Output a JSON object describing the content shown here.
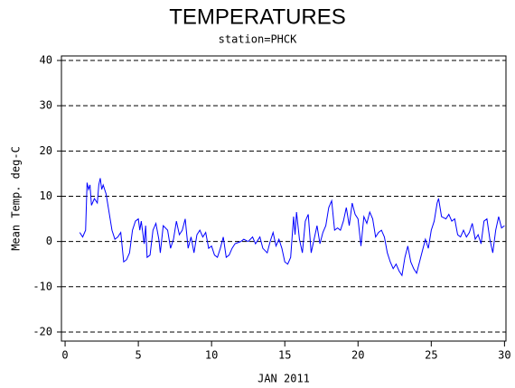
{
  "chart_data": {
    "type": "line",
    "title": "TEMPERATURES",
    "subtitle": "station=PHCK",
    "y_label": "Mean Temp. deg-C",
    "x_label": "JAN 2011",
    "x": [
      1.0,
      1.2,
      1.4,
      1.5,
      1.6,
      1.7,
      1.8,
      2.0,
      2.2,
      2.3,
      2.4,
      2.5,
      2.6,
      2.8,
      3.0,
      3.2,
      3.4,
      3.6,
      3.8,
      4.0,
      4.2,
      4.4,
      4.6,
      4.8,
      5.0,
      5.1,
      5.2,
      5.4,
      5.5,
      5.6,
      5.8,
      6.0,
      6.2,
      6.4,
      6.5,
      6.7,
      7.0,
      7.2,
      7.4,
      7.6,
      7.8,
      8.0,
      8.2,
      8.4,
      8.6,
      8.8,
      9.0,
      9.2,
      9.4,
      9.6,
      9.8,
      10.0,
      10.2,
      10.4,
      10.6,
      10.8,
      11.0,
      11.2,
      11.4,
      11.6,
      12.0,
      12.2,
      12.5,
      12.8,
      13.0,
      13.3,
      13.5,
      13.8,
      14.0,
      14.2,
      14.4,
      14.6,
      14.8,
      15.0,
      15.2,
      15.4,
      15.6,
      15.7,
      15.8,
      16.0,
      16.2,
      16.4,
      16.6,
      16.8,
      17.0,
      17.2,
      17.4,
      17.6,
      17.8,
      18.0,
      18.2,
      18.4,
      18.6,
      18.8,
      19.0,
      19.2,
      19.4,
      19.6,
      19.8,
      20.0,
      20.2,
      20.4,
      20.6,
      20.8,
      21.0,
      21.2,
      21.4,
      21.6,
      21.8,
      22.0,
      22.2,
      22.4,
      22.6,
      22.8,
      23.0,
      23.2,
      23.4,
      23.6,
      23.8,
      24.0,
      24.2,
      24.4,
      24.6,
      24.8,
      25.0,
      25.2,
      25.4,
      25.5,
      25.7,
      26.0,
      26.2,
      26.4,
      26.6,
      26.8,
      27.0,
      27.2,
      27.4,
      27.6,
      27.8,
      28.0,
      28.2,
      28.4,
      28.6,
      28.8,
      29.0,
      29.2,
      29.4,
      29.6,
      29.8,
      30.0
    ],
    "series": [
      {
        "color": "#0000ff",
        "values": [
          2,
          1,
          2.5,
          13,
          11.5,
          12.5,
          8,
          9.5,
          8.5,
          12.5,
          14,
          11.5,
          12.5,
          10.5,
          6.5,
          2.5,
          0.5,
          1,
          2,
          -4.5,
          -4,
          -2.5,
          2.5,
          4.5,
          5,
          2.5,
          4.5,
          -0.5,
          3.5,
          -3.5,
          -3,
          2.5,
          4,
          0.5,
          -2.5,
          3.5,
          2.5,
          -1.5,
          0.5,
          4.5,
          1.5,
          2.5,
          5,
          -1.5,
          1,
          -2.5,
          1.5,
          2.5,
          1,
          2,
          -1.5,
          -1,
          -3,
          -3.5,
          -1.5,
          1,
          -3.5,
          -3,
          -1.5,
          -0.5,
          0,
          0.5,
          0,
          1,
          -0.5,
          1,
          -1.5,
          -2.5,
          0,
          2,
          -1,
          0.5,
          -1.5,
          -4.5,
          -5,
          -3.5,
          5.5,
          1.5,
          6.5,
          0.5,
          -2.5,
          4.5,
          6,
          -2.5,
          0.5,
          3.5,
          -0.5,
          2,
          3.5,
          7.5,
          9,
          2.5,
          3,
          2.5,
          4.5,
          7.5,
          3.5,
          8.5,
          6,
          5,
          -1,
          5.5,
          4,
          6.5,
          5,
          1,
          2,
          2.5,
          1,
          -2.5,
          -4.5,
          -6,
          -5,
          -6.5,
          -7.5,
          -3.5,
          -1,
          -4.5,
          -6,
          -7,
          -4.5,
          -2,
          0.5,
          -1.5,
          2.5,
          4.5,
          8.5,
          9.5,
          5.5,
          5,
          6,
          4.5,
          5,
          1.5,
          1,
          2.5,
          1,
          2,
          4,
          0.5,
          1.5,
          -0.5,
          4.5,
          5,
          0.5,
          -2.5,
          2.5,
          5.5,
          3,
          3.5
        ]
      }
    ],
    "xlim": [
      -0.25,
      30.1
    ],
    "xticks": [
      0,
      5,
      10,
      15,
      20,
      25,
      30
    ],
    "ylim": [
      -22,
      41
    ],
    "yticks": [
      -20,
      -10,
      0,
      10,
      20,
      30,
      40
    ],
    "grid": true
  }
}
